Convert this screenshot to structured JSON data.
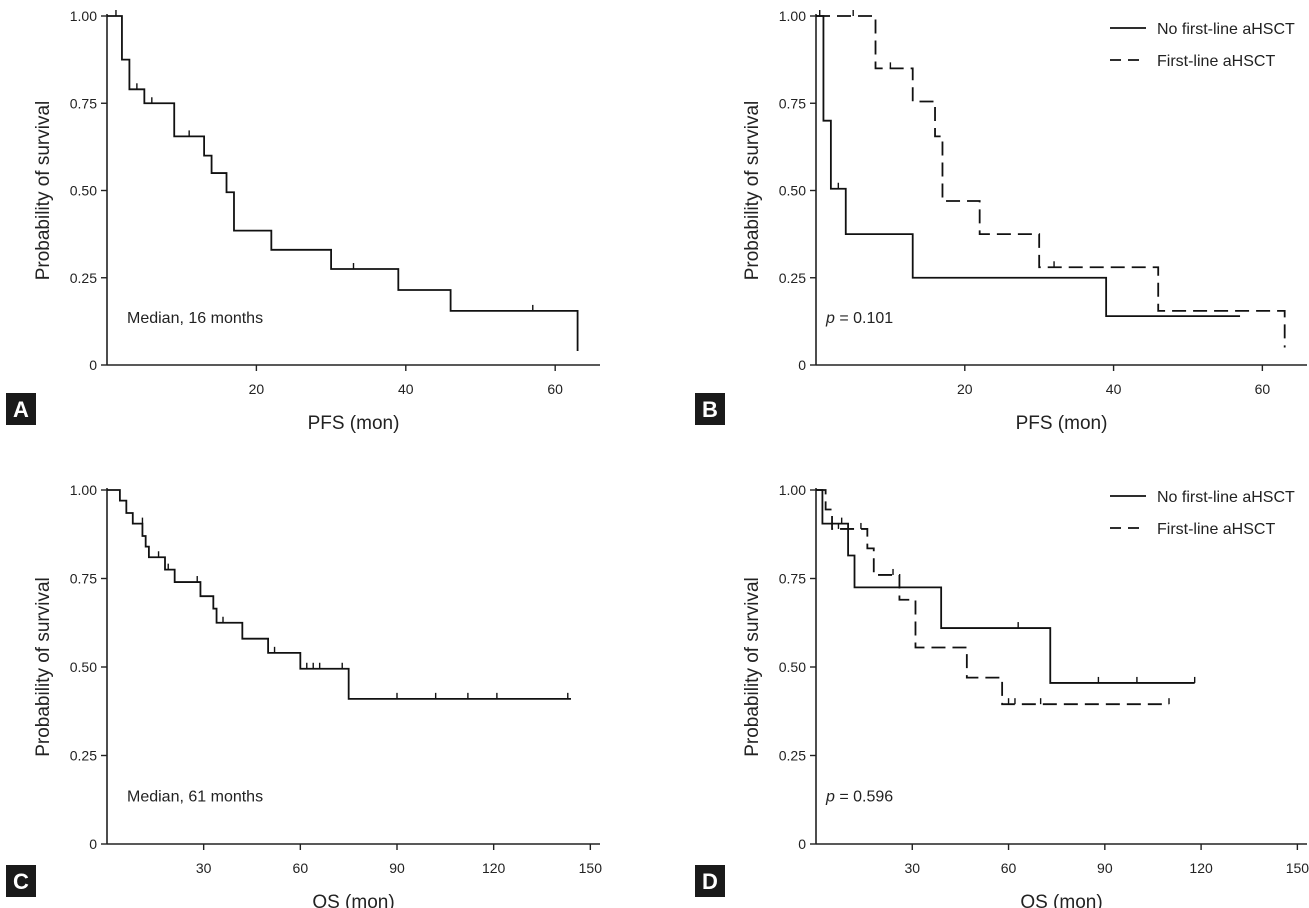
{
  "chart_data": [
    {
      "panel_letter": "A",
      "type": "line",
      "xlabel": "PFS (mon)",
      "ylabel": "Probability of survival",
      "xlim": [
        0,
        66
      ],
      "ylim": [
        0,
        1.0
      ],
      "xticks": [
        "20",
        "40",
        "60"
      ],
      "xtick_values": [
        20,
        40,
        60
      ],
      "yticks": [
        "0",
        "0.25",
        "0.50",
        "0.75",
        "1.00"
      ],
      "ytick_values": [
        0,
        0.25,
        0.5,
        0.75,
        1.0
      ],
      "annotation": "Median, 16 months",
      "series": [
        {
          "style": "solid",
          "x": [
            0,
            2,
            3,
            5,
            9,
            13,
            14,
            16,
            17,
            22,
            30,
            39,
            46,
            63
          ],
          "y": [
            1.0,
            0.875,
            0.79,
            0.75,
            0.655,
            0.6,
            0.55,
            0.495,
            0.385,
            0.33,
            0.275,
            0.215,
            0.155,
            0.04
          ],
          "censored": [
            [
              1.2,
              1.0
            ],
            [
              4,
              0.79
            ],
            [
              6,
              0.75
            ],
            [
              11,
              0.655
            ],
            [
              33,
              0.275
            ],
            [
              57,
              0.155
            ]
          ]
        }
      ]
    },
    {
      "panel_letter": "B",
      "type": "line",
      "xlabel": "PFS (mon)",
      "ylabel": "Probability of survival",
      "xlim": [
        0,
        66
      ],
      "ylim": [
        0,
        1.0
      ],
      "xticks": [
        "20",
        "40",
        "60"
      ],
      "xtick_values": [
        20,
        40,
        60
      ],
      "yticks": [
        "0",
        "0.25",
        "0.50",
        "0.75",
        "1.00"
      ],
      "ytick_values": [
        0,
        0.25,
        0.5,
        0.75,
        1.0
      ],
      "annotation_p": "p",
      "annotation_value": " = 0.101",
      "legend": [
        "No first-line aHSCT",
        "First-line aHSCT"
      ],
      "series": [
        {
          "name": "No first-line aHSCT",
          "style": "solid",
          "x": [
            0,
            1,
            2,
            4,
            13,
            39,
            57
          ],
          "y": [
            1.0,
            0.7,
            0.505,
            0.375,
            0.25,
            0.14,
            0.14
          ],
          "censored": [
            [
              3,
              0.505
            ]
          ]
        },
        {
          "name": "First-line aHSCT",
          "style": "dashed",
          "x": [
            0,
            8,
            13,
            16,
            17,
            22,
            30,
            46,
            63
          ],
          "y": [
            1.0,
            0.85,
            0.755,
            0.655,
            0.47,
            0.375,
            0.28,
            0.155,
            0.05
          ],
          "censored": [
            [
              0.5,
              1.0
            ],
            [
              5,
              1.0
            ],
            [
              10,
              0.85
            ],
            [
              32,
              0.28
            ]
          ]
        }
      ]
    },
    {
      "panel_letter": "C",
      "type": "line",
      "xlabel": "OS (mon)",
      "ylabel": "Probability of survival",
      "xlim": [
        0,
        153
      ],
      "ylim": [
        0,
        1.0
      ],
      "xticks": [
        "30",
        "60",
        "90",
        "120",
        "150"
      ],
      "xtick_values": [
        30,
        60,
        90,
        120,
        150
      ],
      "yticks": [
        "0",
        "0.25",
        "0.50",
        "0.75",
        "1.00"
      ],
      "ytick_values": [
        0,
        0.25,
        0.5,
        0.75,
        1.0
      ],
      "annotation": "Median, 61 months",
      "series": [
        {
          "style": "solid",
          "x": [
            0,
            4,
            6,
            8,
            11,
            12,
            13,
            18,
            21,
            29,
            33,
            34,
            42,
            50,
            60,
            75,
            144
          ],
          "y": [
            1.0,
            0.97,
            0.935,
            0.905,
            0.87,
            0.84,
            0.81,
            0.775,
            0.74,
            0.7,
            0.665,
            0.625,
            0.58,
            0.54,
            0.495,
            0.41,
            0.41
          ],
          "censored": [
            [
              11,
              0.905
            ],
            [
              16,
              0.81
            ],
            [
              19,
              0.775
            ],
            [
              28,
              0.74
            ],
            [
              36,
              0.625
            ],
            [
              52,
              0.54
            ],
            [
              62,
              0.495
            ],
            [
              64,
              0.495
            ],
            [
              66,
              0.495
            ],
            [
              73,
              0.495
            ],
            [
              90,
              0.41
            ],
            [
              102,
              0.41
            ],
            [
              112,
              0.41
            ],
            [
              121,
              0.41
            ],
            [
              143,
              0.41
            ]
          ]
        }
      ]
    },
    {
      "panel_letter": "D",
      "type": "line",
      "xlabel": "OS (mon)",
      "ylabel": "Probability of survival",
      "xlim": [
        0,
        153
      ],
      "ylim": [
        0,
        1.0
      ],
      "xticks": [
        "30",
        "60",
        "90",
        "120",
        "150"
      ],
      "xtick_values": [
        30,
        60,
        90,
        120,
        150
      ],
      "yticks": [
        "0",
        "0.25",
        "0.50",
        "0.75",
        "1.00"
      ],
      "ytick_values": [
        0,
        0.25,
        0.5,
        0.75,
        1.0
      ],
      "annotation_p": "p",
      "annotation_value": " = 0.596",
      "legend": [
        "No first-line aHSCT",
        "First-line aHSCT"
      ],
      "series": [
        {
          "name": "No first-line aHSCT",
          "style": "solid",
          "x": [
            0,
            2,
            10,
            12,
            39,
            73,
            118
          ],
          "y": [
            1.0,
            0.905,
            0.815,
            0.725,
            0.61,
            0.455,
            0.455
          ],
          "censored": [
            [
              8,
              0.905
            ],
            [
              63,
              0.61
            ],
            [
              88,
              0.455
            ],
            [
              100,
              0.455
            ],
            [
              118,
              0.455
            ]
          ]
        },
        {
          "name": "First-line aHSCT",
          "style": "dashed",
          "x": [
            0,
            3,
            5,
            16,
            18,
            26,
            31,
            47,
            58,
            110
          ],
          "y": [
            1.0,
            0.945,
            0.89,
            0.835,
            0.76,
            0.69,
            0.555,
            0.47,
            0.395,
            0.395
          ],
          "censored": [
            [
              7,
              0.89
            ],
            [
              14,
              0.89
            ],
            [
              24,
              0.76
            ],
            [
              60,
              0.395
            ],
            [
              62,
              0.395
            ],
            [
              70,
              0.395
            ],
            [
              110,
              0.395
            ]
          ]
        }
      ]
    }
  ]
}
